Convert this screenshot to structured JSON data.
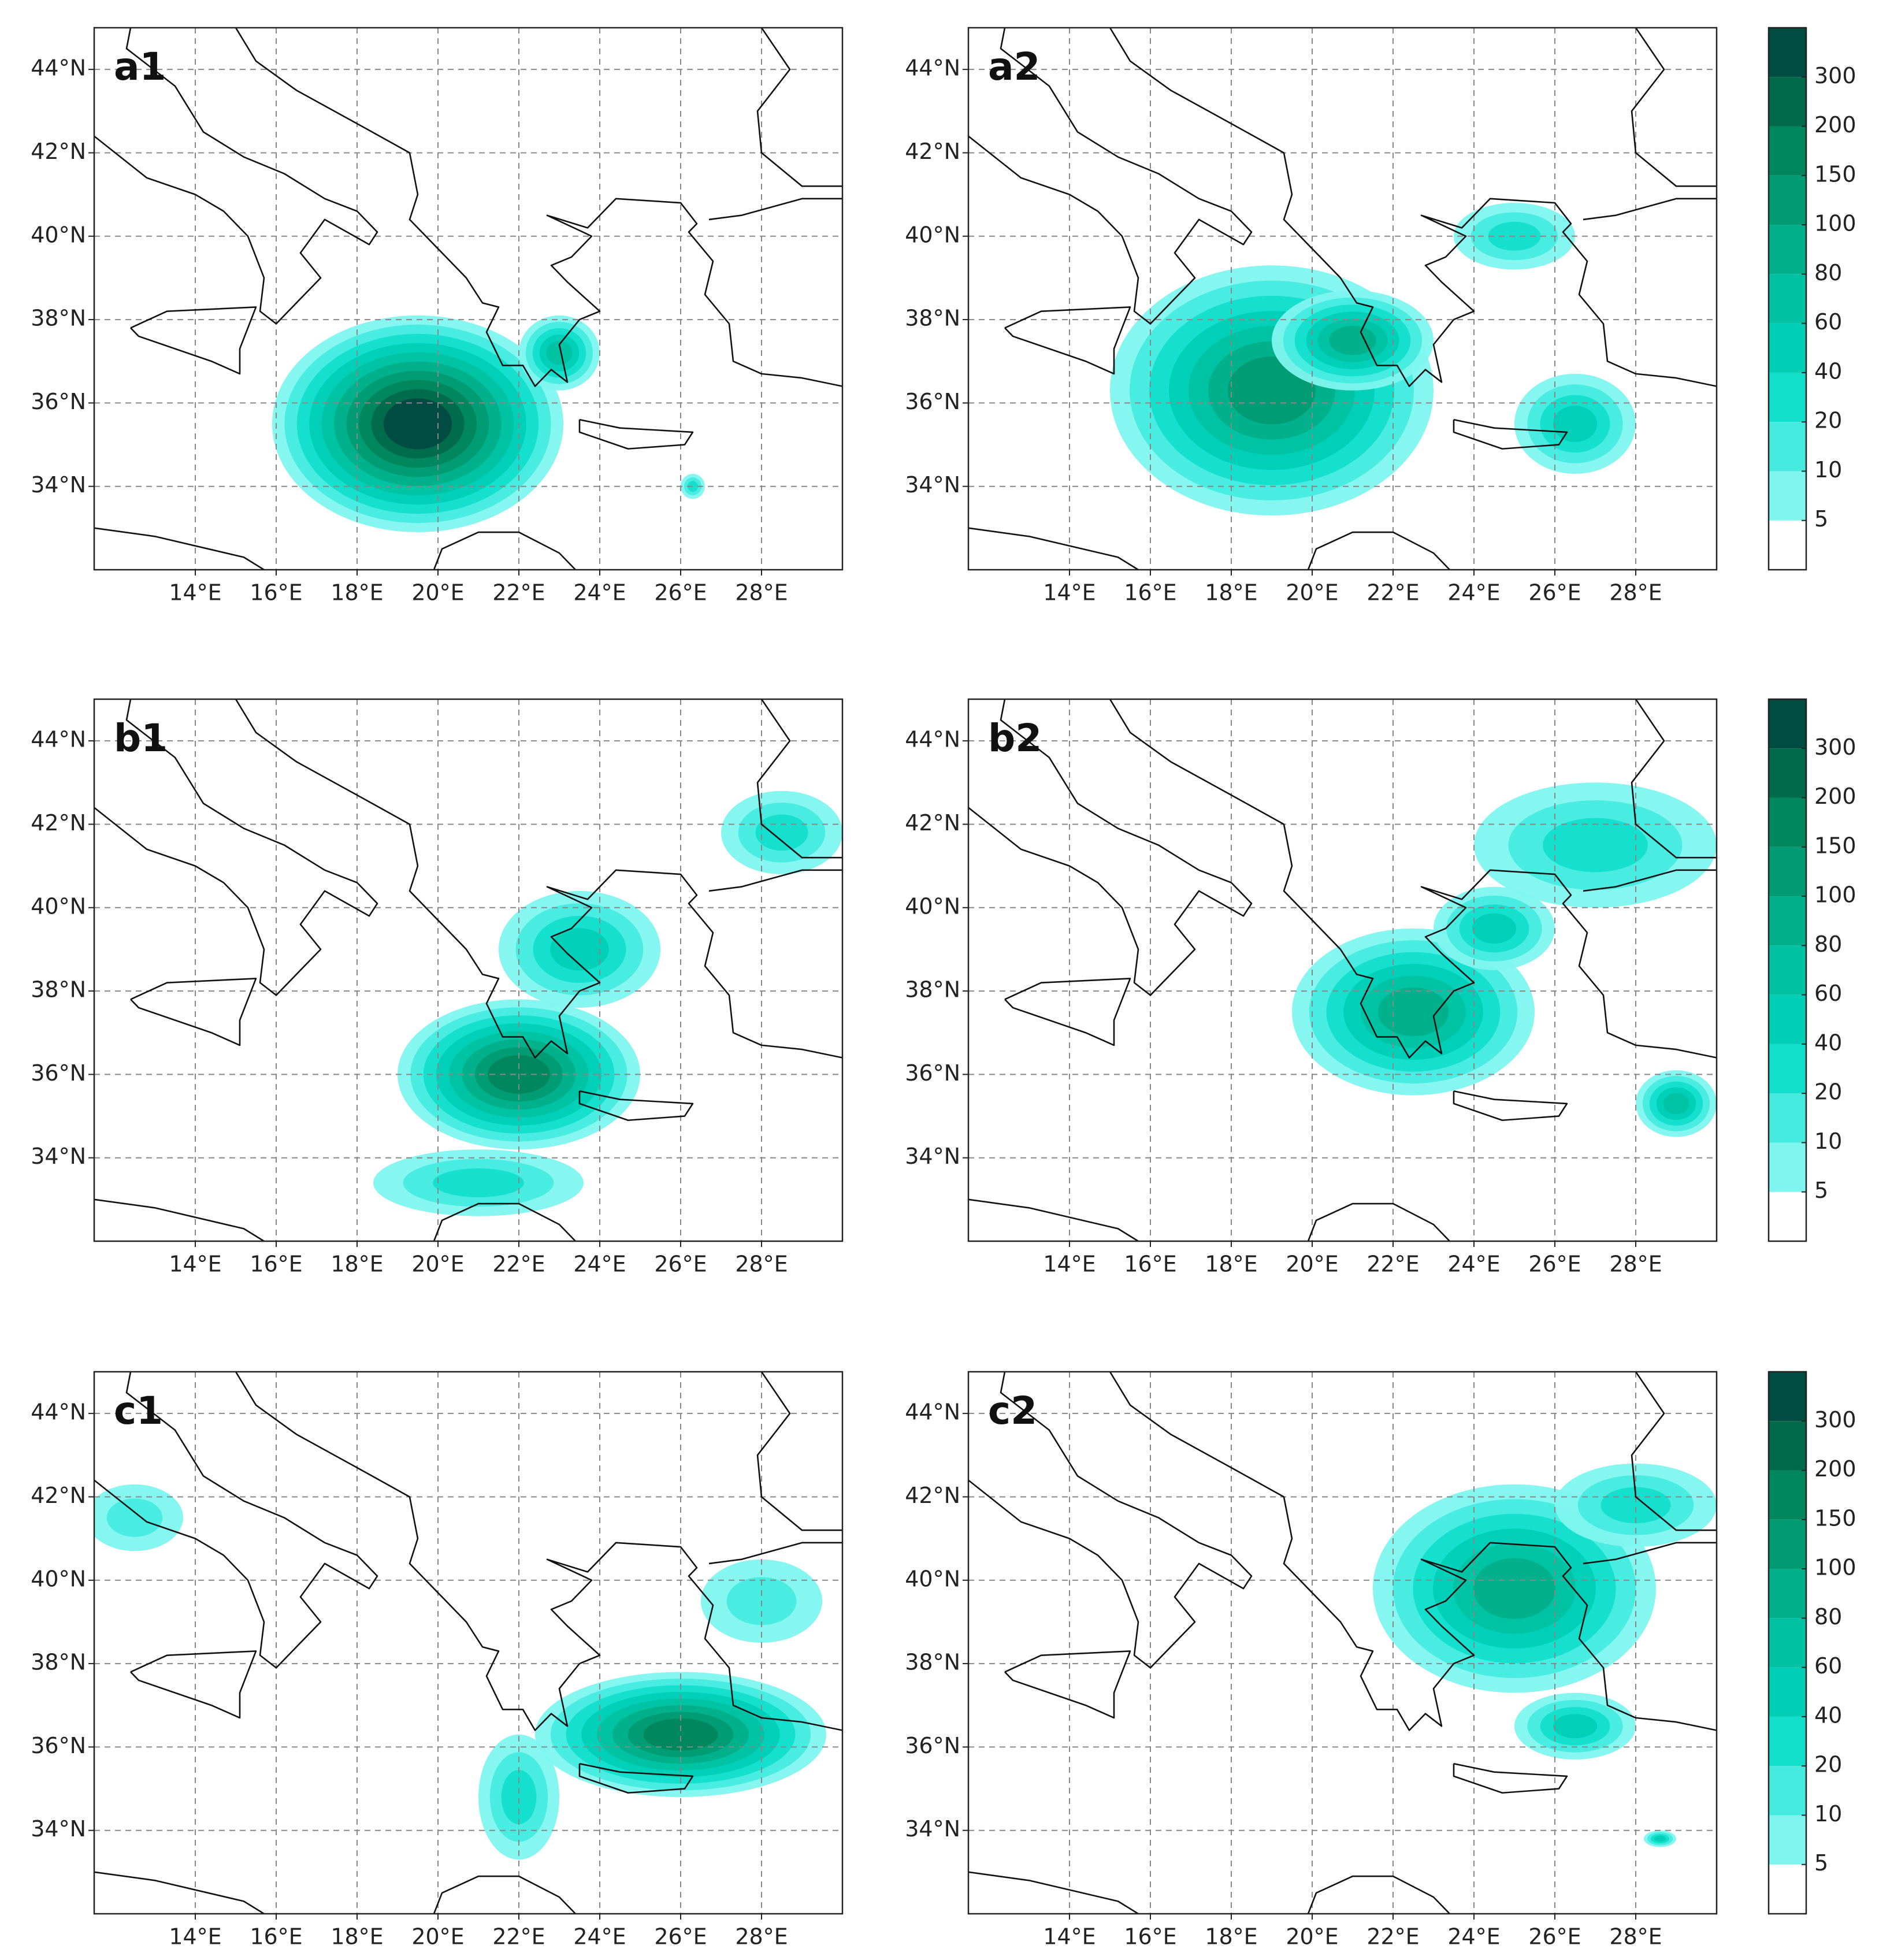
{
  "panels": [
    {
      "label": "a1"
    },
    {
      "label": "a2"
    },
    {
      "label": "b1"
    },
    {
      "label": "b2"
    },
    {
      "label": "c1"
    },
    {
      "label": "c2"
    }
  ],
  "map": {
    "lonlim": [
      11.5,
      30
    ],
    "latlim": [
      32,
      45
    ],
    "grid": true,
    "xticks": [
      {
        "value": 14,
        "label": "14°E"
      },
      {
        "value": 16,
        "label": "16°E"
      },
      {
        "value": 18,
        "label": "18°E"
      },
      {
        "value": 20,
        "label": "20°E"
      },
      {
        "value": 22,
        "label": "22°E"
      },
      {
        "value": 24,
        "label": "24°E"
      },
      {
        "value": 26,
        "label": "26°E"
      },
      {
        "value": 28,
        "label": "28°E"
      }
    ],
    "yticks": [
      {
        "value": 34,
        "label": "34°N"
      },
      {
        "value": 36,
        "label": "36°N"
      },
      {
        "value": 38,
        "label": "38°N"
      },
      {
        "value": 40,
        "label": "40°N"
      },
      {
        "value": 42,
        "label": "42°N"
      },
      {
        "value": 44,
        "label": "44°N"
      }
    ]
  },
  "colorbar": {
    "levels": [
      5,
      10,
      20,
      40,
      60,
      80,
      100,
      150,
      200,
      300
    ],
    "colors": [
      "#ffffff",
      "#80f5ef",
      "#45ebdf",
      "#12dfcb",
      "#00cfb6",
      "#00c2a2",
      "#00b08a",
      "#009b72",
      "#00865c",
      "#006a4a",
      "#004b42"
    ]
  }
}
